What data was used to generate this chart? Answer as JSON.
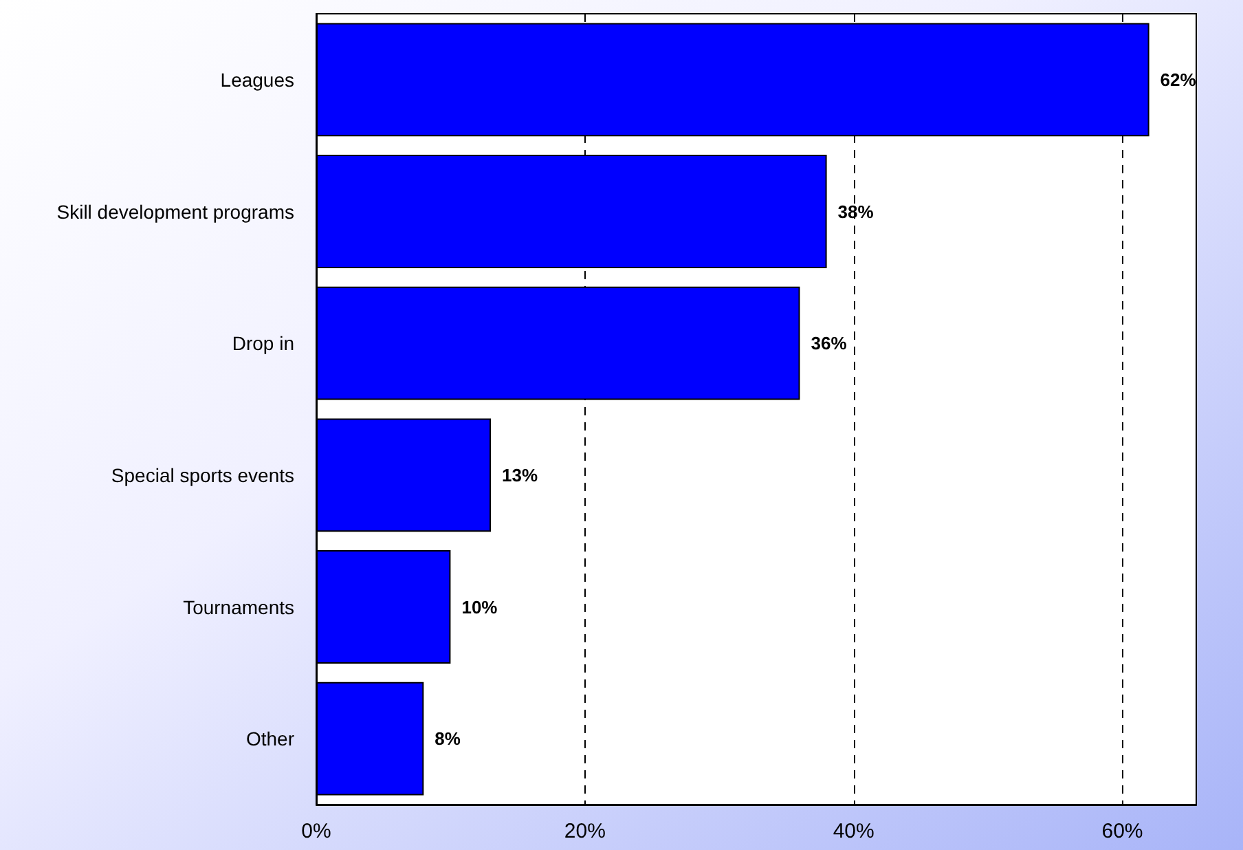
{
  "chart_data": {
    "type": "bar",
    "orientation": "horizontal",
    "categories": [
      "Leagues",
      "Skill development programs",
      "Drop in",
      "Special sports events",
      "Tournaments",
      "Other"
    ],
    "values": [
      62,
      38,
      36,
      13,
      10,
      8
    ],
    "color": "#0000ff",
    "value_labels": [
      "62%",
      "38%",
      "36%",
      "13%",
      "10%",
      "8%"
    ],
    "xlim": [
      0,
      65.5
    ],
    "xticks": [
      {
        "value": 0,
        "label": "0%"
      },
      {
        "value": 20,
        "label": "20%"
      },
      {
        "value": 40,
        "label": "40%"
      },
      {
        "value": 60,
        "label": "60%"
      }
    ],
    "grid": "x",
    "line_style": "dashed"
  }
}
